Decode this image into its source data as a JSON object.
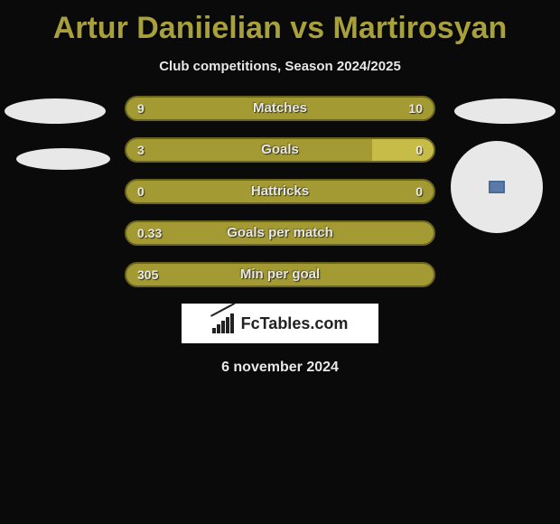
{
  "title": "Artur Daniielian vs Martirosyan",
  "subtitle": "Club competitions, Season 2024/2025",
  "date": "6 november 2024",
  "logo": {
    "text": "FcTables.com"
  },
  "colors": {
    "background": "#0a0a0a",
    "title": "#a8a03a",
    "bar_fill": "#a39a33",
    "bar_alt_fill": "#c8bc48",
    "bar_border": "#6b651f",
    "text": "#e8e8e8",
    "logo_bg": "#ffffff",
    "ellipse": "#e8e8e8"
  },
  "bars": [
    {
      "label": "Matches",
      "left": "9",
      "right": "10",
      "right_alt_pct": 0
    },
    {
      "label": "Goals",
      "left": "3",
      "right": "0",
      "right_alt_pct": 20
    },
    {
      "label": "Hattricks",
      "left": "0",
      "right": "0",
      "right_alt_pct": 0
    },
    {
      "label": "Goals per match",
      "left": "0.33",
      "right": "",
      "right_alt_pct": 0
    },
    {
      "label": "Min per goal",
      "left": "305",
      "right": "",
      "right_alt_pct": 0
    }
  ],
  "decor": {
    "ellipse_tl": true,
    "ellipse_ml": true,
    "ellipse_tr": true,
    "circle_r": true
  }
}
